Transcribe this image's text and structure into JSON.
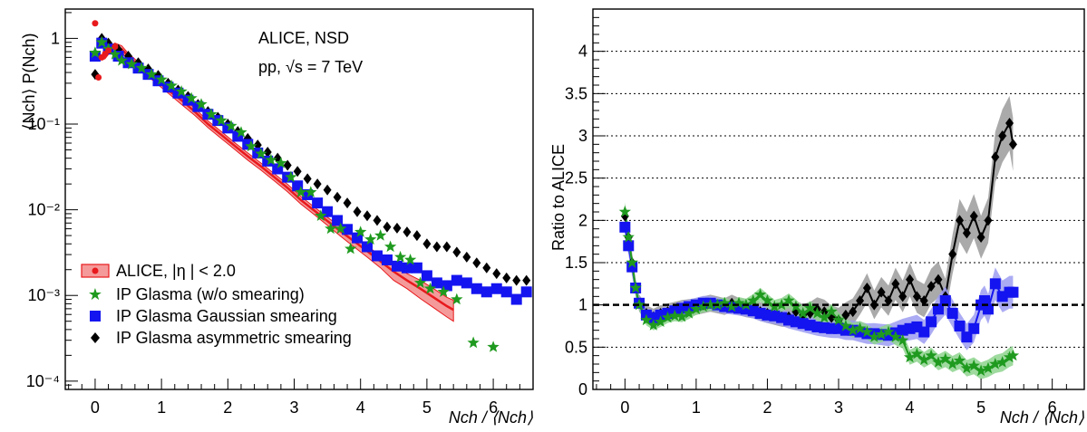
{
  "colors": {
    "alice": "#e8191c",
    "alice_band": "#f59a9a",
    "ip_glasma": "#1f9a1f",
    "ip_glasma_band": "#8ed48e",
    "gaussian": "#1414f0",
    "gaussian_band": "#9c9cf2",
    "asymmetric": "#000000",
    "asymmetric_band": "#9b9b9b"
  },
  "icons": {
    "alice": "red-circle-with-band",
    "ip_glasma": "green-star",
    "gaussian": "blue-square",
    "asymmetric": "black-diamond"
  },
  "chart_data": [
    {
      "type": "scatter",
      "yscale": "log",
      "xlim": [
        -0.45,
        6.6
      ],
      "ylim": [
        8e-05,
        2.2
      ],
      "xticks": [
        "0",
        "1",
        "2",
        "3",
        "4",
        "5",
        "6"
      ],
      "yticks": [
        "10⁻⁴",
        "10⁻³",
        "10⁻²",
        "10⁻¹",
        "1"
      ],
      "ylabel": "⟨Nch⟩ P(Nch)",
      "xlabel": "Nch / ⟨Nch⟩",
      "annotation": [
        "ALICE, NSD",
        "pp, √s = 7 TeV"
      ],
      "legend": [
        "ALICE, |η | < 2.0",
        "IP Glasma (w/o smearing)",
        "IP Glasma Gaussian smearing",
        "IP Glasma asymmetric smearing"
      ],
      "series": [
        {
          "name": "ALICE, |η | < 2.0",
          "key": "alice",
          "x": [
            0.0,
            0.05,
            0.1,
            0.15,
            0.2,
            0.3,
            0.4,
            0.5,
            0.7,
            0.9,
            1.1,
            1.3,
            1.5,
            1.7,
            1.9,
            2.1,
            2.3,
            2.5,
            2.7,
            2.9,
            3.1,
            3.3,
            3.5,
            3.7,
            3.9,
            4.1,
            4.3,
            4.5,
            4.7,
            4.9,
            5.1,
            5.3,
            5.4
          ],
          "y": [
            1.5,
            0.35,
            0.6,
            0.66,
            0.72,
            0.8,
            0.75,
            0.62,
            0.45,
            0.34,
            0.25,
            0.19,
            0.14,
            0.1,
            0.075,
            0.056,
            0.042,
            0.032,
            0.024,
            0.018,
            0.013,
            0.0098,
            0.0074,
            0.0056,
            0.0043,
            0.0033,
            0.0025,
            0.0019,
            0.0015,
            0.0012,
            0.00095,
            0.00075,
            0.00068
          ],
          "band_low": [
            1.2,
            0.3,
            0.5,
            0.58,
            0.65,
            0.72,
            0.68,
            0.57,
            0.41,
            0.31,
            0.23,
            0.17,
            0.127,
            0.091,
            0.068,
            0.051,
            0.038,
            0.029,
            0.0217,
            0.0162,
            0.0117,
            0.0088,
            0.0066,
            0.0049,
            0.0037,
            0.0028,
            0.0021,
            0.0015,
            0.0012,
            0.00092,
            0.00072,
            0.00056,
            0.0005
          ],
          "band_high": [
            1.8,
            0.4,
            0.7,
            0.74,
            0.8,
            0.88,
            0.82,
            0.67,
            0.49,
            0.37,
            0.27,
            0.21,
            0.153,
            0.109,
            0.082,
            0.061,
            0.046,
            0.035,
            0.0263,
            0.0198,
            0.0143,
            0.0108,
            0.0082,
            0.0063,
            0.0049,
            0.0038,
            0.0029,
            0.0023,
            0.0018,
            0.0015,
            0.0012,
            0.00095,
            0.00088
          ]
        },
        {
          "name": "IP Glasma (w/o smearing)",
          "key": "ip_glasma",
          "x": [
            0.0,
            0.1,
            0.2,
            0.3,
            0.4,
            0.55,
            0.7,
            0.85,
            1.0,
            1.15,
            1.3,
            1.45,
            1.6,
            1.75,
            1.9,
            2.05,
            2.2,
            2.35,
            2.5,
            2.65,
            2.8,
            2.95,
            3.1,
            3.25,
            3.4,
            3.55,
            3.7,
            3.85,
            4.0,
            4.15,
            4.3,
            4.45,
            4.6,
            4.75,
            4.9,
            5.05,
            5.25,
            5.45,
            5.7,
            6.0
          ],
          "y": [
            0.68,
            0.9,
            0.75,
            0.65,
            0.55,
            0.5,
            0.45,
            0.38,
            0.33,
            0.28,
            0.24,
            0.2,
            0.17,
            0.13,
            0.11,
            0.095,
            0.08,
            0.055,
            0.045,
            0.038,
            0.035,
            0.024,
            0.016,
            0.016,
            0.0085,
            0.006,
            0.006,
            0.0035,
            0.0055,
            0.0045,
            0.005,
            0.0037,
            0.0028,
            0.0026,
            0.0014,
            0.0012,
            0.0011,
            0.0009,
            0.00028,
            0.00025
          ]
        },
        {
          "name": "IP Glasma Gaussian smearing",
          "key": "gaussian",
          "x": [
            0.0,
            0.1,
            0.2,
            0.35,
            0.5,
            0.65,
            0.8,
            0.95,
            1.1,
            1.25,
            1.4,
            1.55,
            1.7,
            1.85,
            2.0,
            2.15,
            2.3,
            2.45,
            2.6,
            2.75,
            2.9,
            3.05,
            3.2,
            3.35,
            3.5,
            3.65,
            3.8,
            3.95,
            4.1,
            4.25,
            4.4,
            4.55,
            4.7,
            4.85,
            5.0,
            5.15,
            5.3,
            5.45,
            5.6,
            5.75,
            5.9,
            6.05,
            6.2,
            6.35,
            6.5
          ],
          "y": [
            0.62,
            0.88,
            0.75,
            0.62,
            0.52,
            0.45,
            0.38,
            0.32,
            0.27,
            0.23,
            0.19,
            0.16,
            0.13,
            0.11,
            0.09,
            0.072,
            0.058,
            0.046,
            0.037,
            0.03,
            0.024,
            0.019,
            0.015,
            0.012,
            0.0095,
            0.0075,
            0.0059,
            0.0047,
            0.0037,
            0.0029,
            0.0026,
            0.0022,
            0.0021,
            0.0021,
            0.0017,
            0.0014,
            0.0013,
            0.0015,
            0.0014,
            0.0012,
            0.0011,
            0.0012,
            0.0011,
            0.0009,
            0.0011
          ]
        },
        {
          "name": "IP Glasma asymmetric smearing",
          "key": "asymmetric",
          "x": [
            0.0,
            0.1,
            0.2,
            0.35,
            0.5,
            0.65,
            0.8,
            0.95,
            1.1,
            1.25,
            1.4,
            1.55,
            1.7,
            1.85,
            2.0,
            2.15,
            2.3,
            2.45,
            2.6,
            2.75,
            2.9,
            3.05,
            3.2,
            3.35,
            3.5,
            3.65,
            3.8,
            3.95,
            4.1,
            4.25,
            4.4,
            4.55,
            4.7,
            4.85,
            5.0,
            5.15,
            5.3,
            5.45,
            5.6,
            5.75,
            5.9,
            6.05,
            6.2,
            6.35,
            6.5
          ],
          "y": [
            0.38,
            1.0,
            0.88,
            0.74,
            0.62,
            0.52,
            0.44,
            0.37,
            0.3,
            0.25,
            0.21,
            0.17,
            0.14,
            0.12,
            0.1,
            0.082,
            0.068,
            0.057,
            0.047,
            0.04,
            0.033,
            0.028,
            0.023,
            0.02,
            0.017,
            0.014,
            0.012,
            0.0095,
            0.0085,
            0.0075,
            0.0063,
            0.0061,
            0.0055,
            0.005,
            0.004,
            0.0037,
            0.0037,
            0.0032,
            0.0028,
            0.0024,
            0.0021,
            0.0018,
            0.0016,
            0.0015,
            0.0015
          ]
        }
      ]
    },
    {
      "type": "line",
      "xlim": [
        -0.45,
        6.45
      ],
      "ylim": [
        0,
        4.5
      ],
      "xticks": [
        "0",
        "1",
        "2",
        "3",
        "4",
        "5",
        "6"
      ],
      "yticks": [
        "0",
        "0.5",
        "1",
        "1.5",
        "2",
        "2.5",
        "3",
        "3.5",
        "4"
      ],
      "ylabel": "Ratio to ALICE",
      "xlabel": "Nch / ⟨Nch⟩",
      "grid": true,
      "reference_line": 1,
      "series": [
        {
          "key": "ip_glasma",
          "x": [
            0.0,
            0.05,
            0.1,
            0.15,
            0.2,
            0.3,
            0.4,
            0.5,
            0.6,
            0.7,
            0.8,
            0.9,
            1.0,
            1.1,
            1.2,
            1.3,
            1.4,
            1.5,
            1.6,
            1.7,
            1.8,
            1.9,
            2.0,
            2.1,
            2.2,
            2.3,
            2.4,
            2.5,
            2.6,
            2.7,
            2.8,
            2.9,
            3.0,
            3.1,
            3.2,
            3.3,
            3.4,
            3.5,
            3.6,
            3.7,
            3.8,
            3.9,
            4.0,
            4.1,
            4.2,
            4.3,
            4.4,
            4.5,
            4.6,
            4.7,
            4.8,
            4.9,
            5.0,
            5.1,
            5.2,
            5.3,
            5.4,
            5.45
          ],
          "y": [
            2.1,
            1.8,
            1.5,
            1.2,
            1.0,
            0.82,
            0.76,
            0.8,
            0.85,
            0.87,
            0.86,
            0.9,
            0.95,
            0.98,
            1.0,
            1.0,
            1.02,
            0.98,
            1.02,
            1.0,
            1.05,
            1.12,
            1.05,
            0.98,
            1.0,
            1.05,
            0.98,
            0.9,
            0.96,
            0.9,
            0.85,
            0.92,
            0.82,
            0.75,
            0.7,
            0.72,
            0.68,
            0.62,
            0.65,
            0.68,
            0.62,
            0.58,
            0.38,
            0.42,
            0.35,
            0.4,
            0.32,
            0.36,
            0.3,
            0.34,
            0.25,
            0.28,
            0.22,
            0.25,
            0.3,
            0.32,
            0.38,
            0.4
          ],
          "err": 0.1
        },
        {
          "key": "gaussian",
          "x": [
            0.0,
            0.05,
            0.1,
            0.15,
            0.2,
            0.3,
            0.4,
            0.5,
            0.6,
            0.7,
            0.8,
            0.9,
            1.0,
            1.1,
            1.2,
            1.3,
            1.4,
            1.5,
            1.6,
            1.7,
            1.8,
            1.9,
            2.0,
            2.1,
            2.2,
            2.3,
            2.4,
            2.5,
            2.6,
            2.7,
            2.8,
            2.9,
            3.0,
            3.1,
            3.2,
            3.3,
            3.4,
            3.5,
            3.6,
            3.7,
            3.8,
            3.9,
            4.0,
            4.1,
            4.2,
            4.3,
            4.4,
            4.5,
            4.6,
            4.7,
            4.8,
            4.9,
            5.0,
            5.05,
            5.1,
            5.2,
            5.3,
            5.4,
            5.45
          ],
          "y": [
            1.92,
            1.7,
            1.45,
            1.2,
            1.02,
            0.88,
            0.85,
            0.88,
            0.9,
            0.93,
            0.96,
            0.98,
            1.0,
            1.02,
            1.02,
            1.0,
            0.98,
            0.97,
            0.96,
            0.95,
            0.93,
            0.9,
            0.88,
            0.87,
            0.85,
            0.82,
            0.8,
            0.78,
            0.76,
            0.74,
            0.73,
            0.72,
            0.72,
            0.7,
            0.7,
            0.68,
            0.66,
            0.66,
            0.65,
            0.64,
            0.67,
            0.7,
            0.72,
            0.74,
            0.68,
            0.8,
            0.95,
            1.05,
            0.9,
            0.75,
            0.62,
            0.72,
            1.0,
            1.05,
            0.95,
            1.25,
            1.1,
            1.15,
            1.15
          ],
          "err": 0.15
        },
        {
          "key": "asymmetric",
          "x": [
            0.0,
            0.05,
            0.1,
            0.15,
            0.2,
            0.3,
            0.4,
            0.5,
            0.6,
            0.7,
            0.8,
            0.9,
            1.0,
            1.1,
            1.2,
            1.3,
            1.4,
            1.5,
            1.6,
            1.7,
            1.8,
            1.9,
            2.0,
            2.1,
            2.2,
            2.3,
            2.4,
            2.5,
            2.6,
            2.7,
            2.8,
            2.9,
            3.0,
            3.1,
            3.2,
            3.3,
            3.4,
            3.5,
            3.6,
            3.7,
            3.8,
            3.9,
            4.0,
            4.1,
            4.2,
            4.3,
            4.4,
            4.5,
            4.6,
            4.7,
            4.8,
            4.9,
            5.0,
            5.1,
            5.2,
            5.3,
            5.4,
            5.45
          ],
          "y": [
            2.05,
            1.8,
            1.5,
            1.2,
            1.02,
            0.9,
            0.86,
            0.9,
            0.92,
            0.94,
            0.96,
            0.97,
            0.98,
            1.0,
            1.02,
            1.0,
            0.98,
            1.02,
            0.98,
            0.96,
            0.95,
            0.92,
            0.9,
            0.88,
            0.86,
            0.86,
            0.92,
            0.88,
            0.9,
            0.95,
            0.92,
            0.85,
            0.82,
            0.88,
            0.92,
            1.05,
            1.2,
            1.0,
            1.15,
            1.05,
            1.25,
            1.1,
            1.3,
            1.1,
            1.05,
            1.22,
            1.3,
            1.1,
            1.6,
            2.0,
            1.85,
            2.05,
            1.8,
            2.0,
            2.75,
            3.0,
            3.15,
            2.9
          ],
          "err": 0.2
        }
      ]
    }
  ]
}
